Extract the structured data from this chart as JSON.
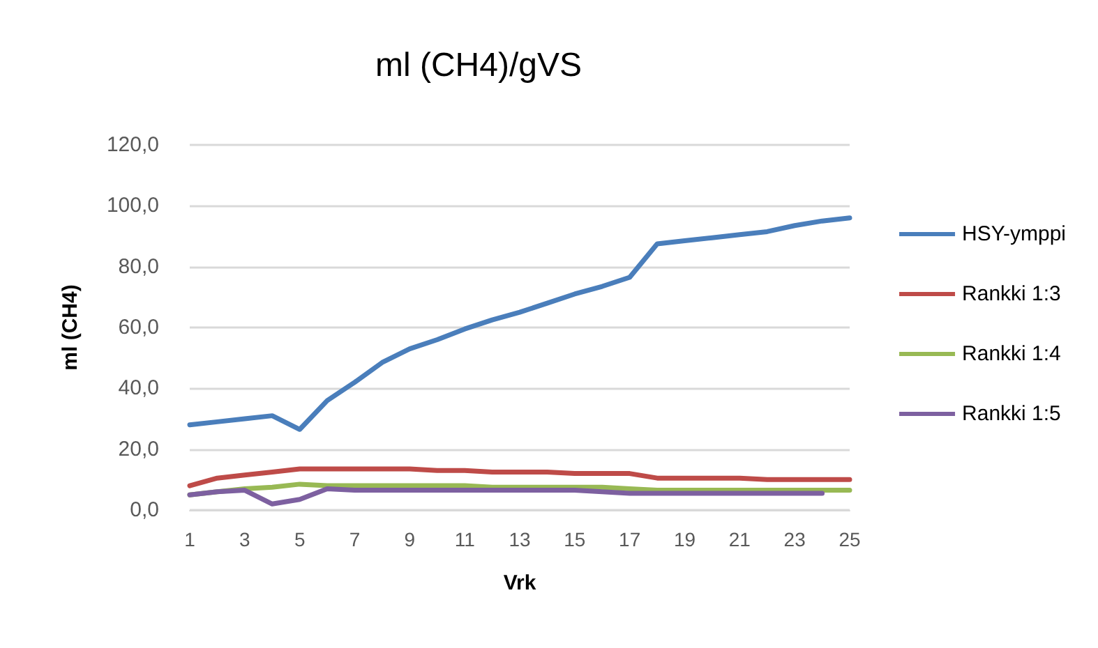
{
  "chart_data": {
    "type": "line",
    "title": "ml (CH4)/gVS",
    "xlabel": "Vrk",
    "ylabel": "ml (CH4)",
    "x": [
      1,
      2,
      3,
      4,
      5,
      6,
      7,
      8,
      9,
      10,
      11,
      12,
      13,
      14,
      15,
      16,
      17,
      18,
      19,
      20,
      21,
      22,
      23,
      24,
      25
    ],
    "xlim": [
      1,
      25
    ],
    "xticks": [
      1,
      3,
      5,
      7,
      9,
      11,
      13,
      15,
      17,
      19,
      21,
      23,
      25
    ],
    "series": [
      {
        "name": "HSY-ymppi",
        "color": "#4a7ebb",
        "values": [
          28,
          29,
          30,
          31,
          26.5,
          36,
          42,
          48.5,
          53,
          56,
          59.5,
          62.5,
          65,
          68,
          71,
          73.5,
          76.5,
          87.5,
          88.5,
          89.5,
          90.5,
          91.5,
          93.5,
          95,
          96
        ]
      },
      {
        "name": "Rankki 1:3",
        "color": "#be4b48",
        "values": [
          8,
          10.5,
          11.5,
          12.5,
          13.5,
          13.5,
          13.5,
          13.5,
          13.5,
          13,
          13,
          12.5,
          12.5,
          12.5,
          12,
          12,
          12,
          10.5,
          10.5,
          10.5,
          10.5,
          10,
          10,
          10,
          10
        ]
      },
      {
        "name": "Rankki 1:4",
        "color": "#98b954",
        "values": [
          5,
          6,
          7,
          7.5,
          8.5,
          8,
          8,
          8,
          8,
          8,
          8,
          7.5,
          7.5,
          7.5,
          7.5,
          7.5,
          7,
          6.5,
          6.5,
          6.5,
          6.5,
          6.5,
          6.5,
          6.5,
          6.5
        ]
      },
      {
        "name": "Rankki 1:5",
        "color": "#7d60a0",
        "values": [
          5,
          6,
          6.5,
          2,
          3.5,
          7,
          6.5,
          6.5,
          6.5,
          6.5,
          6.5,
          6.5,
          6.5,
          6.5,
          6.5,
          6,
          5.5,
          5.5,
          5.5,
          5.5,
          5.5,
          5.5,
          5.5,
          5.5,
          null
        ]
      }
    ],
    "ylim": [
      0,
      120
    ],
    "yticks": [
      {
        "value": 0,
        "label": "0,0"
      },
      {
        "value": 20,
        "label": "20,0"
      },
      {
        "value": 40,
        "label": "40,0"
      },
      {
        "value": 60,
        "label": "60,0"
      },
      {
        "value": 80,
        "label": "80,0"
      },
      {
        "value": 100,
        "label": "100,0"
      },
      {
        "value": 120,
        "label": "120,0"
      }
    ],
    "grid": "y",
    "legend": "right",
    "marker": "none",
    "line_style": "solid"
  }
}
